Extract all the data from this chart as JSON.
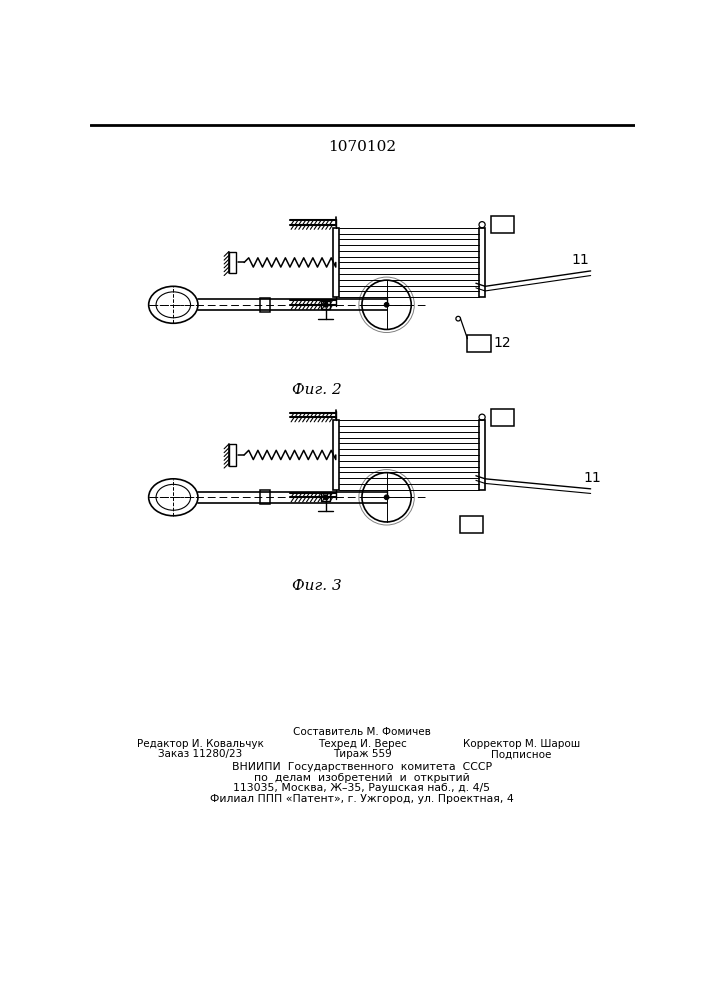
{
  "title": "1070102",
  "fig2_label": "Фиг. 2",
  "fig3_label": "Фиг. 3",
  "footer_line1": "Составитель М. Фомичев",
  "footer_line2_left": "Редактор И. Ковальчук",
  "footer_line2_mid": "Техред И. Верес",
  "footer_line2_right": "Корректор М. Шарош",
  "footer_line3_left": "Заказ 11280/23",
  "footer_line3_mid": "Тираж 559",
  "footer_line3_right": "Подписное",
  "footer_line4": "ВНИИПИ  Государственного  комитета  СССР",
  "footer_line5": "по  делам  изобретений  и  открытий",
  "footer_line6": "113035, Москва, Ж–35, Раушская наб., д. 4/5",
  "footer_line7": "Филиал ППП «Патент», г. Ужгород, ул. Проектная, 4",
  "bg_color": "#ffffff",
  "line_color": "#000000"
}
